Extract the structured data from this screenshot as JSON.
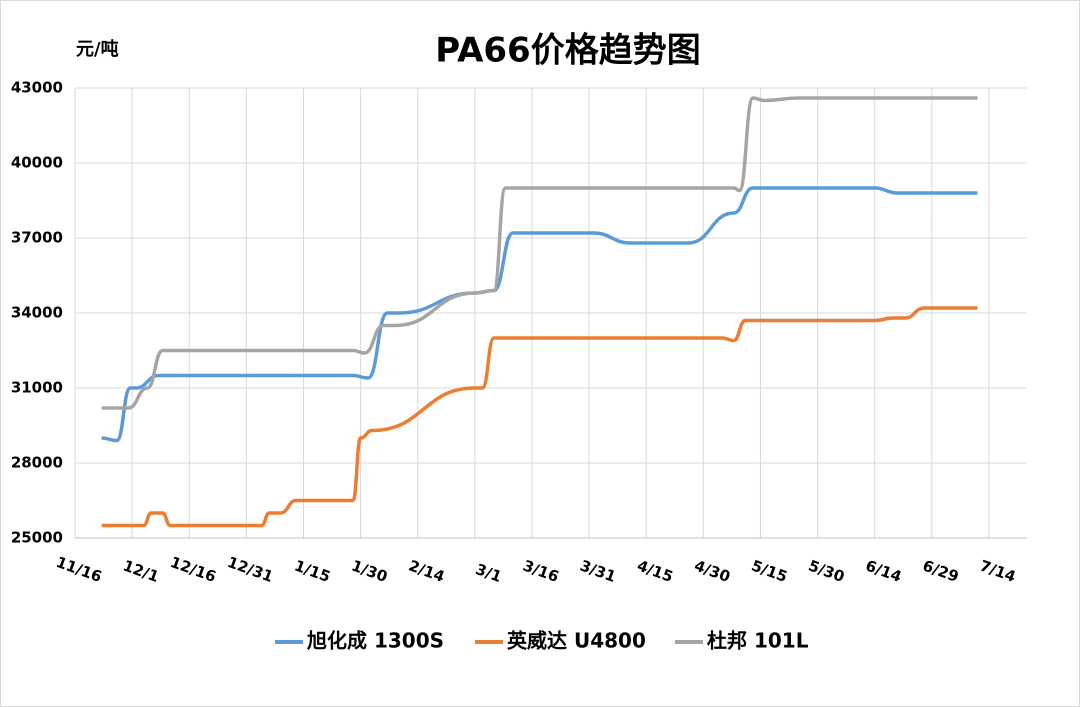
{
  "chart_data": {
    "type": "line",
    "title": "PA66价格趋势图",
    "y_label": "元/吨",
    "xlim": [
      0,
      250
    ],
    "ylim": [
      25000,
      43000
    ],
    "yticks": [
      25000,
      28000,
      31000,
      34000,
      37000,
      40000,
      43000
    ],
    "xticks": [
      {
        "value": 0,
        "label": "11/16"
      },
      {
        "value": 15,
        "label": "12/1"
      },
      {
        "value": 30,
        "label": "12/16"
      },
      {
        "value": 45,
        "label": "12/31"
      },
      {
        "value": 60,
        "label": "1/15"
      },
      {
        "value": 75,
        "label": "1/30"
      },
      {
        "value": 90,
        "label": "2/14"
      },
      {
        "value": 105,
        "label": "3/1"
      },
      {
        "value": 120,
        "label": "3/16"
      },
      {
        "value": 135,
        "label": "3/31"
      },
      {
        "value": 150,
        "label": "4/15"
      },
      {
        "value": 165,
        "label": "4/30"
      },
      {
        "value": 180,
        "label": "5/15"
      },
      {
        "value": 195,
        "label": "5/30"
      },
      {
        "value": 210,
        "label": "6/14"
      },
      {
        "value": 225,
        "label": "6/29"
      },
      {
        "value": 240,
        "label": "7/14"
      }
    ],
    "grid": true,
    "legend": "bottom",
    "series": [
      {
        "name": "旭化成 1300S",
        "color": "#5b9bd5",
        "x": [
          7,
          11,
          14.5,
          16,
          22,
          73,
          77,
          82,
          85,
          105,
          110,
          115,
          136,
          146,
          161,
          173,
          178,
          210,
          216,
          237
        ],
        "values": [
          29000,
          28900,
          31000,
          31000,
          31500,
          31500,
          31400,
          34000,
          34000,
          34800,
          34900,
          37200,
          37200,
          36800,
          36800,
          38000,
          39000,
          39000,
          38800,
          38800
        ]
      },
      {
        "name": "英威达 U4800",
        "color": "#ed7d31",
        "x": [
          7,
          16,
          18,
          20,
          23,
          25,
          27,
          49,
          51,
          54,
          58,
          71,
          73,
          75,
          78,
          105,
          107,
          110,
          170,
          173,
          176,
          210,
          215,
          218,
          223,
          237
        ],
        "values": [
          25500,
          25500,
          25500,
          26000,
          26000,
          25500,
          25500,
          25500,
          26000,
          26000,
          26500,
          26500,
          26500,
          29000,
          29300,
          31000,
          31000,
          33000,
          33000,
          32900,
          33700,
          33700,
          33800,
          33800,
          34200,
          34200
        ]
      },
      {
        "name": "杜邦 101L",
        "color": "#a5a5a5",
        "x": [
          7,
          14,
          19,
          23,
          73,
          76,
          81,
          84,
          105,
          110,
          113,
          118,
          173,
          174.5,
          178,
          181,
          190,
          237
        ],
        "values": [
          30200,
          30200,
          31000,
          32500,
          32500,
          32400,
          33500,
          33500,
          34800,
          34900,
          39000,
          39000,
          39000,
          38900,
          42600,
          42500,
          42600,
          42600
        ]
      }
    ]
  }
}
